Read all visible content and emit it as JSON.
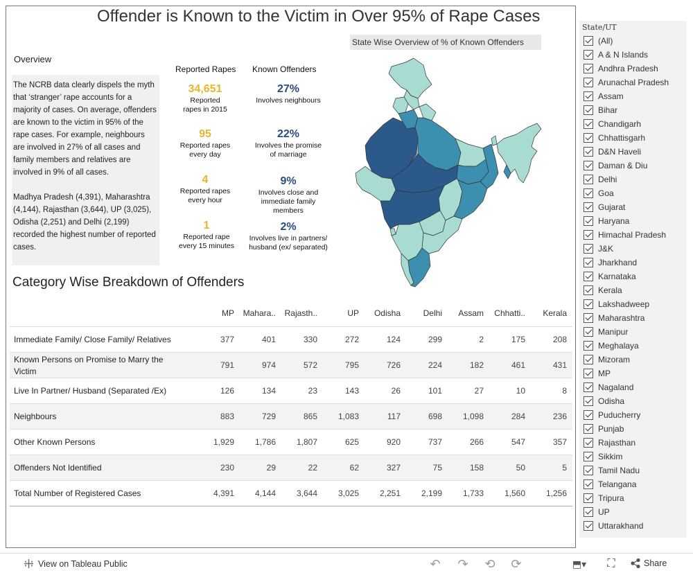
{
  "title": "Offender is Known to the Victim in Over 95% of Rape Cases",
  "overview": {
    "heading": "Overview",
    "para1": "The NCRB data clearly dispels the myth that ‘stranger’ rape accounts for a majority of cases. On average, offenders are known to the victim in 95% of the rape cases. For example, neighbours are involved in 27% of all cases and family members and relatives are involved in 9% of all cases.",
    "para2": "Madhya Pradesh (4,391), Maharashtra (4,144), Rajasthan (3,644), UP (3,025), Odisha (2,251) and Delhi (2,199) recorded the highest number of reported cases."
  },
  "reported": {
    "heading": "Reported Rapes",
    "items": [
      {
        "num": "34,651",
        "desc": "Reported rapes in 2015"
      },
      {
        "num": "95",
        "desc": "Reported rapes every day"
      },
      {
        "num": "4",
        "desc": "Reported rapes every hour"
      },
      {
        "num": "1",
        "desc": "Reported rape every 15 minutes"
      }
    ]
  },
  "known": {
    "heading": "Known Offenders",
    "items": [
      {
        "num": "27%",
        "desc": "Involves neighbours"
      },
      {
        "num": "22%",
        "desc": "Involves the promise of marriage"
      },
      {
        "num": "9%",
        "desc": "Involves close and immediate family members"
      },
      {
        "num": "2%",
        "desc": "Involves live in partners/ husband (ex/ separated)"
      }
    ]
  },
  "map": {
    "label": "State Wise Overview of % of Known Offenders"
  },
  "category": {
    "title": "Category Wise Breakdown of Offenders",
    "columns": [
      "MP",
      "Mahara..",
      "Rajasth..",
      "UP",
      "Odisha",
      "Delhi",
      "Assam",
      "Chhatti..",
      "Kerala"
    ],
    "rows": [
      {
        "label": "Immediate Family/ Close Family/ Relatives",
        "values": [
          "377",
          "401",
          "330",
          "272",
          "124",
          "299",
          "2",
          "175",
          "208"
        ]
      },
      {
        "label": "Known Persons on Promise to Marry the Victim",
        "values": [
          "791",
          "974",
          "572",
          "795",
          "726",
          "224",
          "182",
          "461",
          "431"
        ]
      },
      {
        "label": "Live In Partner/ Husband (Separated /Ex)",
        "values": [
          "126",
          "134",
          "23",
          "143",
          "26",
          "101",
          "27",
          "10",
          "8"
        ]
      },
      {
        "label": "Neighbours",
        "values": [
          "883",
          "729",
          "865",
          "1,083",
          "117",
          "698",
          "1,098",
          "284",
          "236"
        ]
      },
      {
        "label": "Other Known Persons",
        "values": [
          "1,929",
          "1,786",
          "1,807",
          "625",
          "920",
          "737",
          "266",
          "547",
          "357"
        ]
      },
      {
        "label": "Offenders Not Identified",
        "values": [
          "230",
          "29",
          "22",
          "62",
          "327",
          "75",
          "158",
          "50",
          "5"
        ]
      },
      {
        "label": "Total Number of Registered Cases",
        "values": [
          "4,391",
          "4,144",
          "3,644",
          "3,025",
          "2,251",
          "2,199",
          "1,733",
          "1,560",
          "1,256"
        ]
      }
    ]
  },
  "filter": {
    "title": "State/UT",
    "items": [
      "(All)",
      "A & N Islands",
      "Andhra Pradesh",
      "Arunachal Pradesh",
      "Assam",
      "Bihar",
      "Chandigarh",
      "Chhattisgarh",
      "D&N Haveli",
      "Daman & Diu",
      "Delhi",
      "Goa",
      "Gujarat",
      "Haryana",
      "Himachal Pradesh",
      "J&K",
      "Jharkhand",
      "Karnataka",
      "Kerala",
      "Lakshadweep",
      "Maharashtra",
      "Manipur",
      "Meghalaya",
      "Mizoram",
      "MP",
      "Nagaland",
      "Odisha",
      "Puducherry",
      "Punjab",
      "Rajasthan",
      "Sikkim",
      "Tamil Nadu",
      "Telangana",
      "Tripura",
      "UP",
      "Uttarakhand"
    ]
  },
  "footer": {
    "view_label": "View on Tableau Public",
    "share_label": "Share"
  },
  "colors": {
    "gold": "#e8b62a",
    "navy": "#2a4d7f",
    "map_dark": "#2b5a8a",
    "map_mid": "#3d8fb0",
    "map_light": "#a8dcd3"
  }
}
